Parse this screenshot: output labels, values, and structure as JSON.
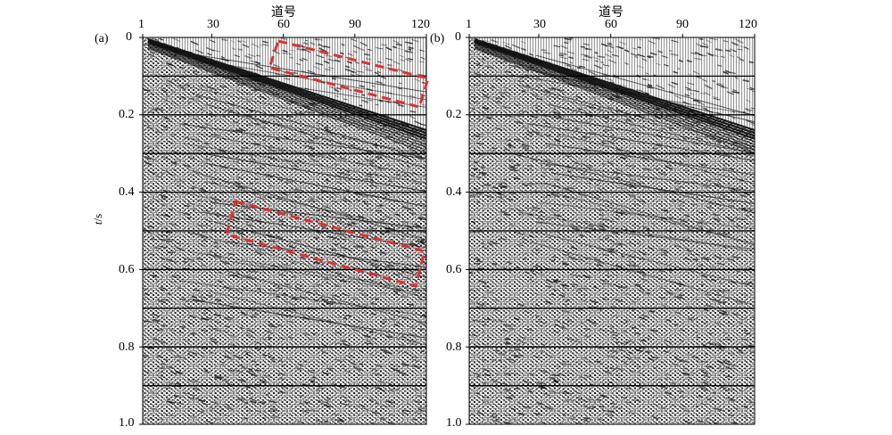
{
  "x_axis_title": "道号",
  "y_axis_label": {
    "symbol": "t",
    "unit": "/s"
  },
  "x_ticks": [
    "1",
    "30",
    "60",
    "90",
    "120"
  ],
  "y_ticks": [
    "0",
    "0.2",
    "0.4",
    "0.6",
    "0.8",
    "1.0"
  ],
  "panels": [
    {
      "label": "(a)",
      "highlight_color": "#e03030"
    },
    {
      "label": "(b)"
    }
  ],
  "colors": {
    "trace_dark": "#111111",
    "trace_light": "#f4f4f4",
    "highlight": "#e03030"
  }
}
